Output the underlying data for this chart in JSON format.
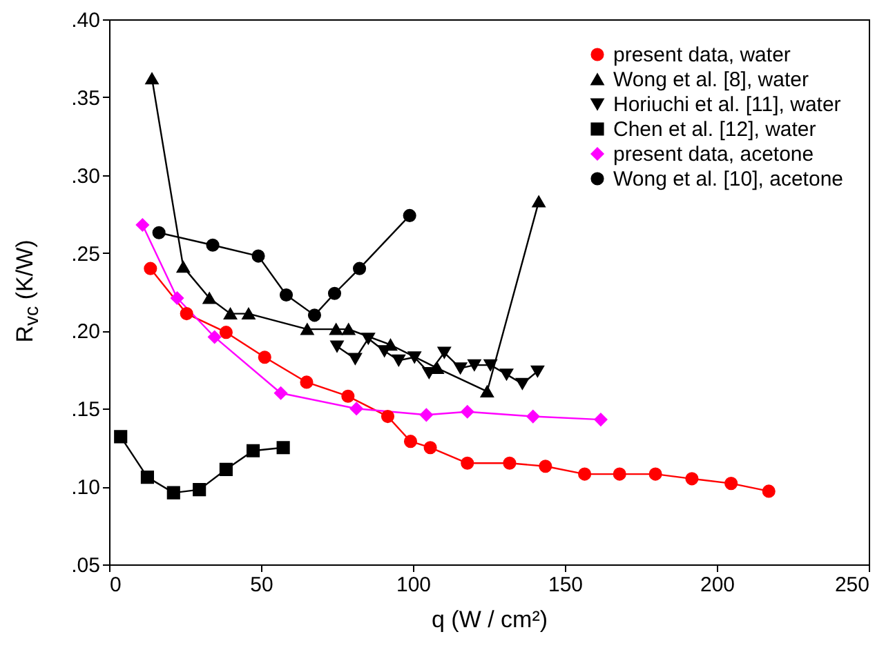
{
  "chart_data": {
    "type": "line",
    "xlabel": "q (W / cm²)",
    "ylabel": "R$_{vc}$ (K/W)",
    "xlim": [
      0,
      250
    ],
    "xticks": [
      0,
      50,
      100,
      150,
      200,
      250
    ],
    "ylim": [
      0.05,
      0.4
    ],
    "yticks": [
      {
        "value": 0.05,
        "label": ".05"
      },
      {
        "value": 0.1,
        "label": ".10"
      },
      {
        "value": 0.15,
        "label": ".15"
      },
      {
        "value": 0.2,
        "label": ".20"
      },
      {
        "value": 0.25,
        "label": ".25"
      },
      {
        "value": 0.3,
        "label": ".30"
      },
      {
        "value": 0.35,
        "label": ".35"
      },
      {
        "value": 0.4,
        "label": ".40"
      }
    ],
    "legend": "top right",
    "grid": false,
    "line_style": "solid",
    "series": [
      {
        "name": "present data, water",
        "color": "#ff0000",
        "marker": "circle",
        "x": [
          13.6,
          25.5,
          38.5,
          51.2,
          65,
          78.6,
          91.7,
          99.2,
          105.7,
          117.9,
          131.8,
          143.6,
          156.5,
          168,
          179.8,
          191.8,
          204.7,
          217.1
        ],
        "values": [
          0.24,
          0.211,
          0.199,
          0.183,
          0.167,
          0.158,
          0.145,
          0.129,
          0.125,
          0.115,
          0.115,
          0.113,
          0.108,
          0.108,
          0.108,
          0.105,
          0.102,
          0.097
        ]
      },
      {
        "name": "Wong et al. [8], water",
        "color": "#000000",
        "marker": "triangle",
        "x": [
          14.1,
          24.4,
          33,
          39.9,
          45.9,
          65.2,
          74.7,
          78.8,
          92.6,
          108,
          124.4,
          141.4
        ],
        "values": [
          0.362,
          0.241,
          0.221,
          0.211,
          0.211,
          0.201,
          0.201,
          0.201,
          0.191,
          0.176,
          0.161,
          0.283
        ]
      },
      {
        "name": "Horiuchi et al. [11], water",
        "color": "#000000",
        "marker": "triangle-down",
        "x": [
          75,
          81,
          85.3,
          90.6,
          95.3,
          100.5,
          105.3,
          110.3,
          115.6,
          120.2,
          125.5,
          130.8,
          136,
          141
        ],
        "values": [
          0.19,
          0.182,
          0.195,
          0.187,
          0.181,
          0.183,
          0.173,
          0.186,
          0.176,
          0.178,
          0.178,
          0.172,
          0.166,
          0.174
        ]
      },
      {
        "name": "Chen et al. [12], water",
        "color": "#000000",
        "marker": "square",
        "x": [
          3.8,
          12.6,
          21.2,
          29.7,
          38.5,
          47.4,
          57.3
        ],
        "values": [
          0.132,
          0.106,
          0.096,
          0.098,
          0.111,
          0.123,
          0.125
        ]
      },
      {
        "name": "present data, acetone",
        "color": "#ff00ff",
        "marker": "diamond",
        "x": [
          11,
          22.4,
          34.7,
          56.5,
          81.4,
          104.4,
          117.9,
          139.5,
          161.8
        ],
        "values": [
          0.268,
          0.221,
          0.196,
          0.16,
          0.15,
          0.146,
          0.148,
          0.145,
          0.143
        ]
      },
      {
        "name": "Wong et al. [10], acetone",
        "color": "#000000",
        "marker": "circle",
        "x": [
          16.4,
          34.1,
          49.1,
          58.3,
          67.6,
          74.2,
          82.4,
          98.9
        ],
        "values": [
          0.263,
          0.255,
          0.248,
          0.223,
          0.21,
          0.224,
          0.24,
          0.274
        ]
      }
    ]
  }
}
